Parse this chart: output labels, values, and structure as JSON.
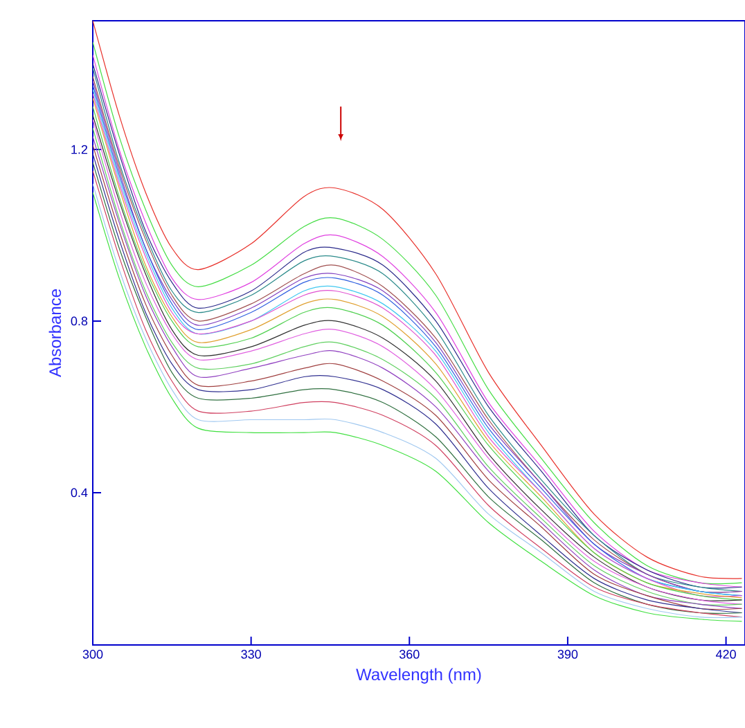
{
  "chart_data": {
    "type": "line",
    "xlabel": "Wavelength (nm)",
    "ylabel": "Absorbance",
    "x": [
      300,
      305,
      310,
      315,
      320,
      330,
      340,
      346,
      355,
      365,
      375,
      385,
      395,
      405,
      415,
      423
    ],
    "xlim": [
      300,
      423.6
    ],
    "ylim": [
      0.045,
      1.5
    ],
    "xticks": [
      300,
      330,
      360,
      390,
      420
    ],
    "yticks": [
      0.4,
      0.8,
      1.2
    ],
    "grid": false,
    "legend": false,
    "marker": "none",
    "line_style": "solid",
    "series": [
      {
        "color": "#e8302a",
        "values": [
          1.5,
          1.28,
          1.1,
          0.97,
          0.92,
          0.98,
          1.09,
          1.11,
          1.06,
          0.91,
          0.68,
          0.51,
          0.35,
          0.25,
          0.205,
          0.2
        ]
      },
      {
        "color": "#44dd44",
        "values": [
          1.45,
          1.23,
          1.06,
          0.93,
          0.88,
          0.93,
          1.02,
          1.04,
          0.99,
          0.86,
          0.64,
          0.48,
          0.33,
          0.23,
          0.19,
          0.19
        ]
      },
      {
        "color": "#e040e0",
        "values": [
          1.42,
          1.2,
          1.03,
          0.9,
          0.85,
          0.89,
          0.98,
          1.0,
          0.95,
          0.82,
          0.61,
          0.46,
          0.31,
          0.22,
          0.19,
          0.18
        ]
      },
      {
        "color": "#2a2a8a",
        "values": [
          1.4,
          1.19,
          1.01,
          0.89,
          0.83,
          0.87,
          0.96,
          0.97,
          0.93,
          0.8,
          0.6,
          0.45,
          0.3,
          0.22,
          0.18,
          0.18
        ]
      },
      {
        "color": "#2a8a8a",
        "values": [
          1.39,
          1.17,
          1.0,
          0.87,
          0.82,
          0.86,
          0.94,
          0.95,
          0.91,
          0.78,
          0.58,
          0.43,
          0.3,
          0.21,
          0.18,
          0.17
        ]
      },
      {
        "color": "#a05050",
        "values": [
          1.37,
          1.16,
          0.99,
          0.86,
          0.8,
          0.84,
          0.91,
          0.93,
          0.88,
          0.76,
          0.57,
          0.42,
          0.29,
          0.21,
          0.17,
          0.17
        ]
      },
      {
        "color": "#8040c0",
        "values": [
          1.36,
          1.15,
          0.97,
          0.85,
          0.79,
          0.83,
          0.9,
          0.91,
          0.87,
          0.75,
          0.56,
          0.42,
          0.28,
          0.21,
          0.17,
          0.17
        ]
      },
      {
        "color": "#3060e0",
        "values": [
          1.35,
          1.14,
          0.97,
          0.84,
          0.78,
          0.82,
          0.89,
          0.9,
          0.86,
          0.74,
          0.55,
          0.41,
          0.28,
          0.2,
          0.17,
          0.16
        ]
      },
      {
        "color": "#40c8f0",
        "values": [
          1.34,
          1.13,
          0.96,
          0.83,
          0.77,
          0.8,
          0.87,
          0.88,
          0.84,
          0.73,
          0.54,
          0.4,
          0.27,
          0.2,
          0.17,
          0.16
        ]
      },
      {
        "color": "#e050d0",
        "values": [
          1.33,
          1.12,
          0.95,
          0.82,
          0.77,
          0.8,
          0.86,
          0.87,
          0.83,
          0.72,
          0.53,
          0.4,
          0.27,
          0.2,
          0.16,
          0.16
        ]
      },
      {
        "color": "#e0a030",
        "values": [
          1.32,
          1.11,
          0.93,
          0.81,
          0.75,
          0.78,
          0.84,
          0.85,
          0.81,
          0.7,
          0.52,
          0.39,
          0.26,
          0.19,
          0.165,
          0.155
        ]
      },
      {
        "color": "#50d050",
        "values": [
          1.3,
          1.09,
          0.92,
          0.8,
          0.74,
          0.76,
          0.82,
          0.83,
          0.79,
          0.68,
          0.51,
          0.38,
          0.26,
          0.19,
          0.16,
          0.15
        ]
      },
      {
        "color": "#303030",
        "values": [
          1.28,
          1.08,
          0.91,
          0.78,
          0.72,
          0.74,
          0.79,
          0.8,
          0.76,
          0.66,
          0.49,
          0.36,
          0.25,
          0.18,
          0.15,
          0.15
        ]
      },
      {
        "color": "#e060e0",
        "values": [
          1.27,
          1.06,
          0.89,
          0.77,
          0.71,
          0.73,
          0.77,
          0.78,
          0.74,
          0.64,
          0.48,
          0.35,
          0.24,
          0.18,
          0.15,
          0.14
        ]
      },
      {
        "color": "#60d060",
        "values": [
          1.25,
          1.04,
          0.87,
          0.75,
          0.69,
          0.7,
          0.74,
          0.75,
          0.71,
          0.62,
          0.46,
          0.34,
          0.23,
          0.17,
          0.14,
          0.14
        ]
      },
      {
        "color": "#9040c0",
        "values": [
          1.23,
          1.03,
          0.86,
          0.74,
          0.67,
          0.69,
          0.72,
          0.73,
          0.69,
          0.6,
          0.45,
          0.33,
          0.22,
          0.16,
          0.14,
          0.13
        ]
      },
      {
        "color": "#a04040",
        "values": [
          1.21,
          1.01,
          0.84,
          0.72,
          0.65,
          0.66,
          0.69,
          0.7,
          0.66,
          0.58,
          0.43,
          0.32,
          0.21,
          0.16,
          0.13,
          0.13
        ]
      },
      {
        "color": "#303090",
        "values": [
          1.19,
          0.99,
          0.82,
          0.7,
          0.64,
          0.64,
          0.67,
          0.67,
          0.64,
          0.56,
          0.41,
          0.3,
          0.2,
          0.15,
          0.13,
          0.12
        ]
      },
      {
        "color": "#307040",
        "values": [
          1.17,
          0.97,
          0.81,
          0.68,
          0.62,
          0.62,
          0.64,
          0.64,
          0.61,
          0.53,
          0.39,
          0.29,
          0.19,
          0.14,
          0.12,
          0.12
        ]
      },
      {
        "color": "#d04060",
        "values": [
          1.15,
          0.95,
          0.78,
          0.66,
          0.59,
          0.59,
          0.61,
          0.61,
          0.58,
          0.51,
          0.37,
          0.27,
          0.18,
          0.14,
          0.12,
          0.11
        ]
      },
      {
        "color": "#a0c8f0",
        "values": [
          1.12,
          0.92,
          0.76,
          0.64,
          0.57,
          0.57,
          0.57,
          0.57,
          0.54,
          0.48,
          0.35,
          0.26,
          0.17,
          0.13,
          0.11,
          0.11
        ]
      },
      {
        "color": "#40e040",
        "values": [
          1.1,
          0.9,
          0.74,
          0.62,
          0.55,
          0.54,
          0.54,
          0.54,
          0.51,
          0.45,
          0.33,
          0.24,
          0.16,
          0.12,
          0.105,
          0.1
        ]
      }
    ]
  }
}
